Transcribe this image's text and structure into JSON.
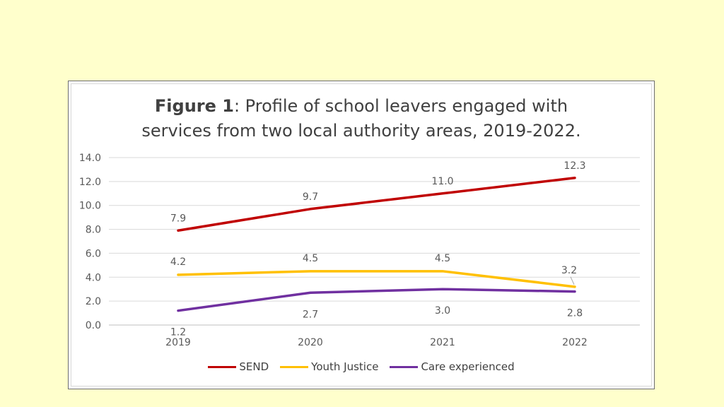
{
  "chart_data": {
    "type": "line",
    "title_bold": "Figure 1",
    "title_rest": ": Profile of school leavers engaged with",
    "title_line2": "services from two local authority areas, 2019-2022.",
    "x": [
      "2019",
      "2020",
      "2021",
      "2022"
    ],
    "ylim": [
      0,
      14
    ],
    "yticks": [
      "0.0",
      "2.0",
      "4.0",
      "6.0",
      "8.0",
      "10.0",
      "12.0",
      "14.0"
    ],
    "grid": true,
    "legend_position": "bottom",
    "series": [
      {
        "name": "SEND",
        "color": "#c00000",
        "values": [
          7.9,
          9.7,
          11.0,
          12.3
        ],
        "labels": [
          "7.9",
          "9.7",
          "11.0",
          "12.3"
        ]
      },
      {
        "name": "Youth Justice",
        "color": "#ffc000",
        "values": [
          4.2,
          4.5,
          4.5,
          3.2
        ],
        "labels": [
          "4.2",
          "4.5",
          "4.5",
          "3.2"
        ]
      },
      {
        "name": "Care experienced",
        "color": "#7030a0",
        "values": [
          1.2,
          2.7,
          3.0,
          2.8
        ],
        "labels": [
          "1.2",
          "2.7",
          "3.0",
          "2.8"
        ]
      }
    ]
  }
}
